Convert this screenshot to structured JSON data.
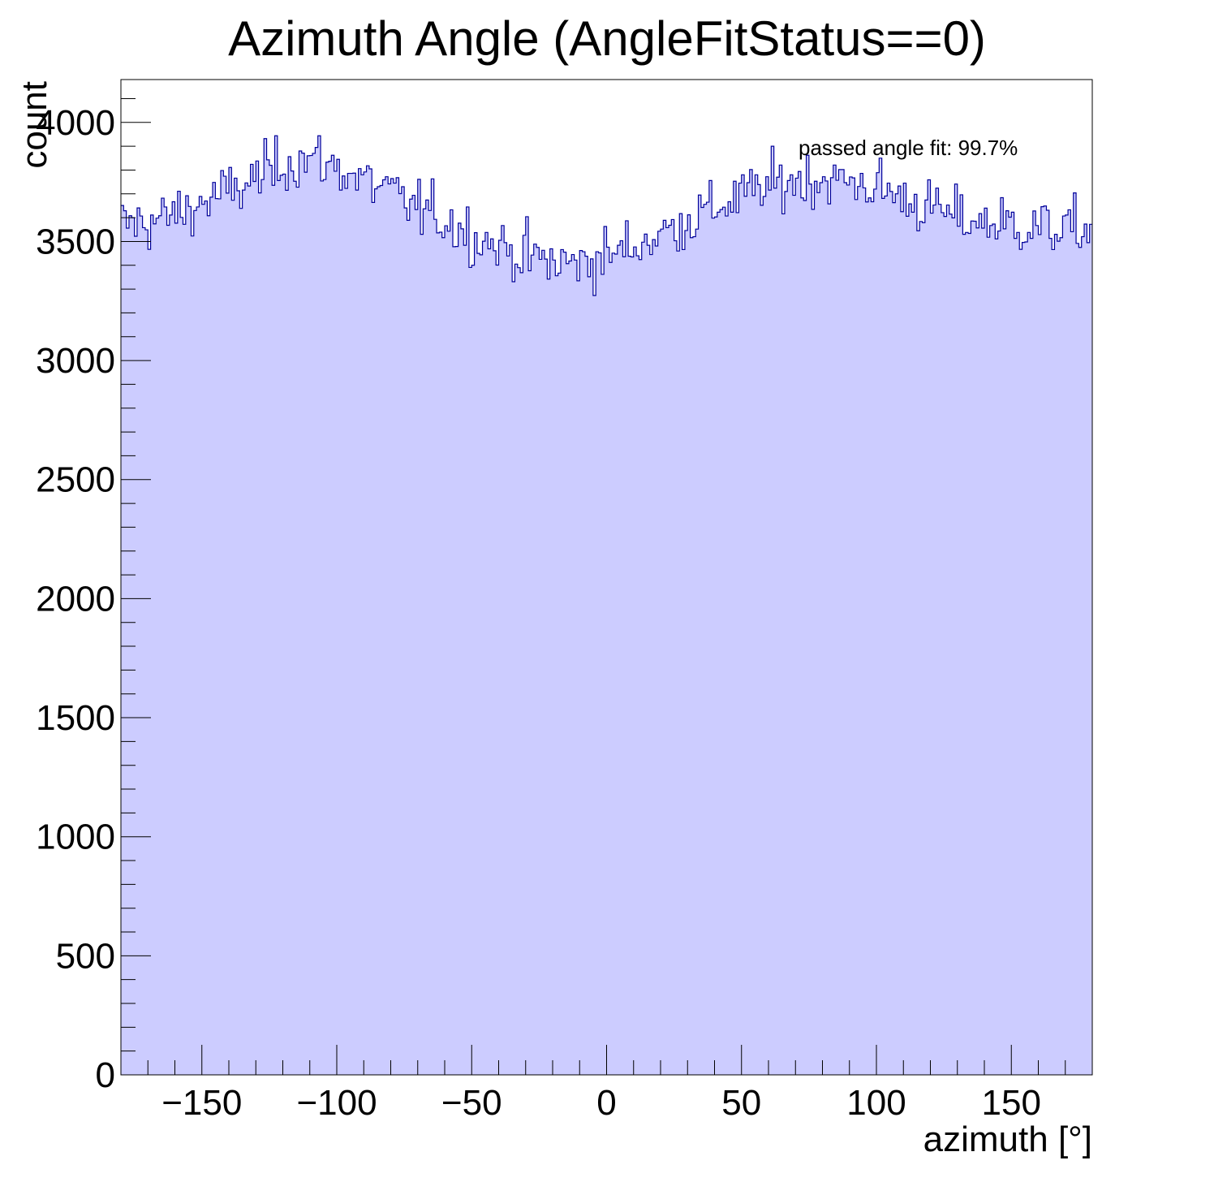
{
  "chart_data": {
    "type": "histogram",
    "title": "Azimuth Angle (AngleFitStatus==0)",
    "xlabel": "azimuth [°]",
    "ylabel": "count",
    "xlim": [
      -180,
      180
    ],
    "ylim": [
      0,
      4180
    ],
    "xticks": [
      -150,
      -100,
      -50,
      0,
      50,
      100,
      150
    ],
    "xtick_labels": [
      "−150",
      "−100",
      "−50",
      "0",
      "50",
      "100",
      "150"
    ],
    "yticks": [
      0,
      500,
      1000,
      1500,
      2000,
      2500,
      3000,
      3500,
      4000
    ],
    "ytick_labels": [
      "0",
      "500",
      "1000",
      "1500",
      "2000",
      "2500",
      "3000",
      "3500",
      "4000"
    ],
    "annotation": "passed angle fit: 99.7%",
    "bins": 360,
    "bin_width": 1,
    "fill_color": "#ccccff",
    "line_color": "#000099",
    "profile": {
      "x": [
        -180,
        -165,
        -150,
        -135,
        -120,
        -110,
        -100,
        -90,
        -80,
        -70,
        -60,
        -50,
        -40,
        -30,
        -20,
        -10,
        0,
        10,
        20,
        30,
        40,
        50,
        60,
        70,
        80,
        90,
        100,
        110,
        120,
        130,
        140,
        150,
        160,
        170,
        180
      ],
      "y": [
        3570,
        3590,
        3660,
        3730,
        3830,
        3850,
        3810,
        3760,
        3700,
        3640,
        3590,
        3530,
        3480,
        3440,
        3410,
        3410,
        3440,
        3480,
        3530,
        3590,
        3640,
        3690,
        3730,
        3760,
        3760,
        3750,
        3730,
        3680,
        3640,
        3600,
        3580,
        3570,
        3560,
        3550,
        3550
      ]
    },
    "noise_sd": 60
  }
}
